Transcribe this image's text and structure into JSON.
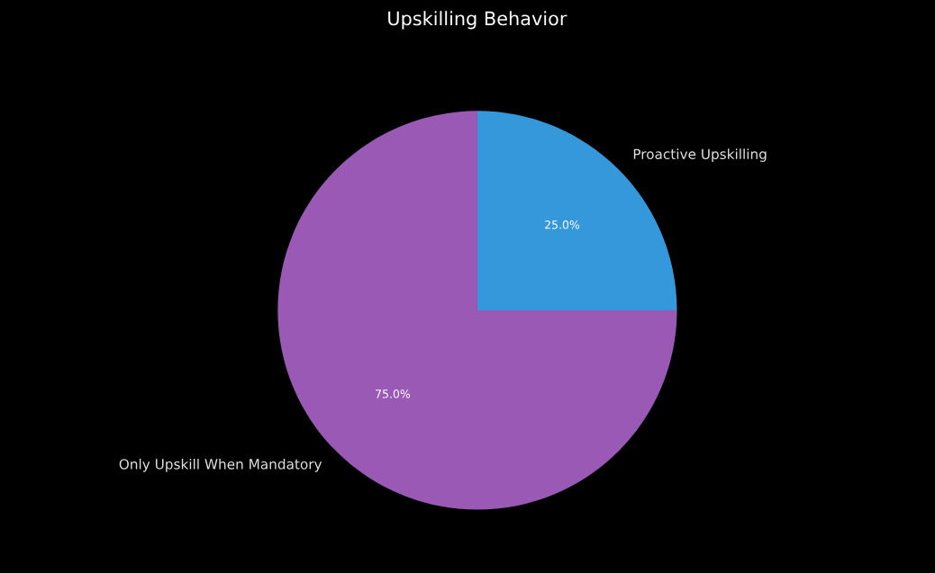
{
  "chart_data": {
    "type": "pie",
    "title": "Upskilling Behavior",
    "categories": [
      "Proactive Upskilling",
      "Only Upskill When Mandatory"
    ],
    "values": [
      25,
      75
    ],
    "colors": [
      "#3498db",
      "#9b59b6"
    ],
    "value_labels": [
      "25.0%",
      "75.0%"
    ]
  }
}
